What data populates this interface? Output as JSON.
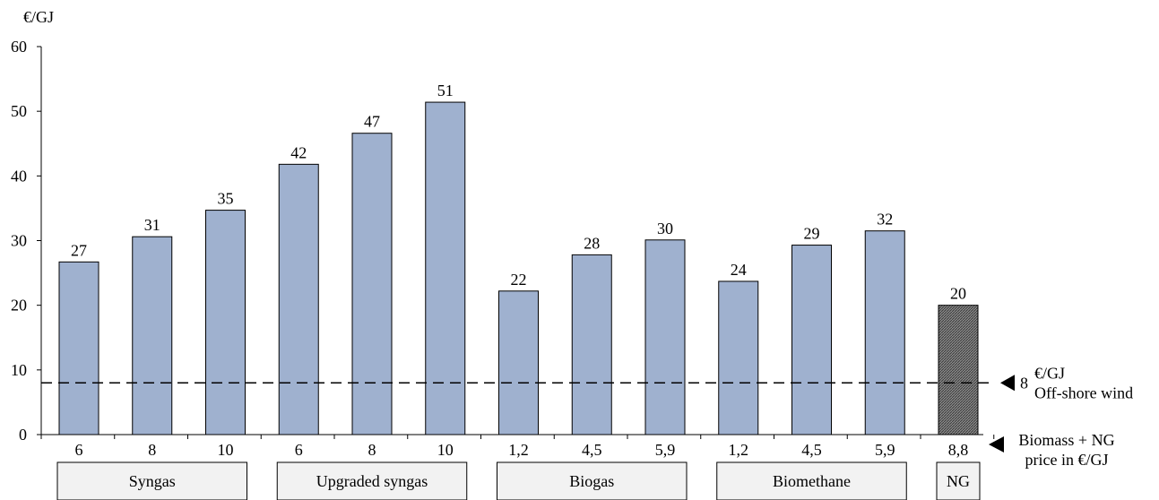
{
  "chart_data": {
    "type": "bar",
    "ylabel": "€/GJ",
    "ylim": [
      0,
      60
    ],
    "y_ticks": [
      0,
      10,
      20,
      30,
      40,
      50,
      60
    ],
    "grid": false,
    "bars": [
      {
        "x_label": "6",
        "group": "Syngas",
        "value": 26.7,
        "label": "27",
        "pattern": "solid"
      },
      {
        "x_label": "8",
        "group": "Syngas",
        "value": 30.6,
        "label": "31",
        "pattern": "solid"
      },
      {
        "x_label": "10",
        "group": "Syngas",
        "value": 34.7,
        "label": "35",
        "pattern": "solid"
      },
      {
        "x_label": "6",
        "group": "Upgraded syngas",
        "value": 41.8,
        "label": "42",
        "pattern": "solid"
      },
      {
        "x_label": "8",
        "group": "Upgraded syngas",
        "value": 46.6,
        "label": "47",
        "pattern": "solid"
      },
      {
        "x_label": "10",
        "group": "Upgraded syngas",
        "value": 51.4,
        "label": "51",
        "pattern": "solid"
      },
      {
        "x_label": "1,2",
        "group": "Biogas",
        "value": 22.2,
        "label": "22",
        "pattern": "solid"
      },
      {
        "x_label": "4,5",
        "group": "Biogas",
        "value": 27.8,
        "label": "28",
        "pattern": "solid"
      },
      {
        "x_label": "5,9",
        "group": "Biogas",
        "value": 30.1,
        "label": "30",
        "pattern": "solid"
      },
      {
        "x_label": "1,2",
        "group": "Biomethane",
        "value": 23.7,
        "label": "24",
        "pattern": "solid"
      },
      {
        "x_label": "4,5",
        "group": "Biomethane",
        "value": 29.3,
        "label": "29",
        "pattern": "solid"
      },
      {
        "x_label": "5,9",
        "group": "Biomethane",
        "value": 31.5,
        "label": "32",
        "pattern": "solid"
      },
      {
        "x_label": "8,8",
        "group": "NG",
        "value": 20.0,
        "label": "20",
        "pattern": "hatched"
      }
    ],
    "groups": [
      {
        "name": "Syngas",
        "bars": [
          0,
          2
        ]
      },
      {
        "name": "Upgraded syngas",
        "bars": [
          3,
          5
        ]
      },
      {
        "name": "Biogas",
        "bars": [
          6,
          8
        ]
      },
      {
        "name": "Biomethane",
        "bars": [
          9,
          11
        ]
      },
      {
        "name": "NG",
        "bars": [
          12,
          12
        ]
      }
    ],
    "reference_line": {
      "value": 8,
      "style": "dashed",
      "value_label": "8",
      "unit_label": "€/GJ",
      "label": "Off-shore wind"
    },
    "x_axis_note": {
      "line1": "Biomass + NG",
      "line2": "price in €/GJ"
    },
    "colors": {
      "bar_fill": "#9fb1cf",
      "ng_fill": "#6e6e6e",
      "group_box_fill": "#f2f2f2",
      "axis": "#000000"
    }
  }
}
